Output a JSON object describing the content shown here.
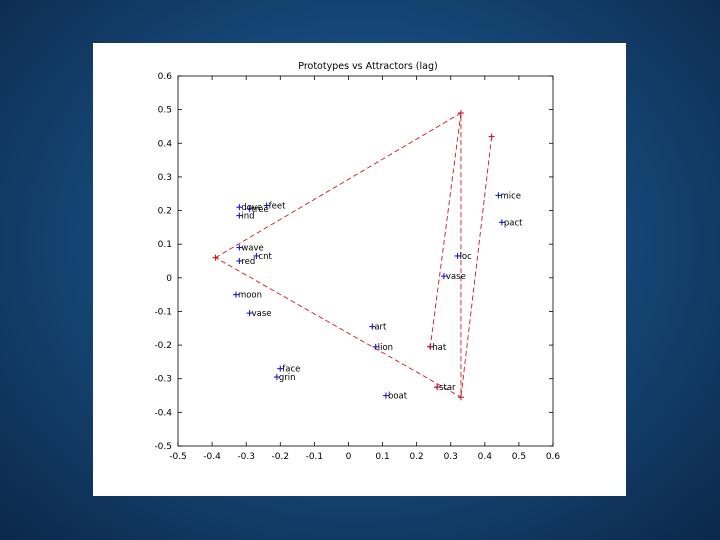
{
  "chart_data": {
    "type": "scatter",
    "title": "Prototypes vs Attractors (lag)",
    "xlabel": "",
    "ylabel": "",
    "xlim": [
      -0.5,
      0.6
    ],
    "ylim": [
      -0.5,
      0.6
    ],
    "grid": false,
    "x_ticks": [
      -0.5,
      -0.4,
      -0.3,
      -0.2,
      -0.1,
      0,
      0.1,
      0.2,
      0.3,
      0.4,
      0.5,
      0.6
    ],
    "x_tick_labels": [
      "-0.5",
      "-0.4",
      "-0.3",
      "-0.2",
      "-0.1",
      "0",
      "0.1",
      "0.2",
      "0.3",
      "0.4",
      "0.5",
      "0.6"
    ],
    "y_ticks": [
      0.6,
      0.5,
      0.4,
      0.3,
      0.2,
      0.1,
      0,
      -0.1,
      -0.2,
      -0.3,
      -0.4,
      -0.5
    ],
    "y_tick_labels": [
      "0.6",
      "0.5",
      "0.4",
      "0.3",
      "0.2",
      "0.1",
      "0",
      "-0.1",
      "-0.2",
      "-0.3",
      "-0.4",
      "-0.5"
    ],
    "series": [
      {
        "color": "#1a1acc",
        "marker": "plus",
        "points": [
          {
            "x": -0.32,
            "y": 0.21,
            "label": "dove"
          },
          {
            "x": -0.29,
            "y": 0.205,
            "label": "tree"
          },
          {
            "x": -0.24,
            "y": 0.215,
            "label": "feet"
          },
          {
            "x": -0.32,
            "y": 0.185,
            "label": "ind"
          },
          {
            "x": -0.32,
            "y": 0.09,
            "label": "wave"
          },
          {
            "x": -0.27,
            "y": 0.065,
            "label": "cnt"
          },
          {
            "x": -0.32,
            "y": 0.05,
            "label": "red"
          },
          {
            "x": -0.33,
            "y": -0.05,
            "label": "moon"
          },
          {
            "x": -0.29,
            "y": -0.105,
            "label": "vase"
          },
          {
            "x": 0.07,
            "y": -0.145,
            "label": "art"
          },
          {
            "x": 0.08,
            "y": -0.205,
            "label": "lion"
          },
          {
            "x": 0.24,
            "y": -0.205,
            "label": "hat"
          },
          {
            "x": 0.26,
            "y": -0.325,
            "label": "star"
          },
          {
            "x": 0.11,
            "y": -0.35,
            "label": "boat"
          },
          {
            "x": -0.2,
            "y": -0.27,
            "label": "face"
          },
          {
            "x": -0.21,
            "y": -0.295,
            "label": "grin"
          },
          {
            "x": 0.32,
            "y": 0.065,
            "label": "loc"
          },
          {
            "x": 0.28,
            "y": 0.005,
            "label": "vase"
          },
          {
            "x": 0.45,
            "y": 0.165,
            "label": "pact"
          },
          {
            "x": 0.44,
            "y": 0.245,
            "label": "mice"
          }
        ]
      },
      {
        "color": "#cc1a1a",
        "marker": "plus",
        "points": [
          {
            "x": -0.39,
            "y": 0.06
          },
          {
            "x": 0.33,
            "y": 0.49
          },
          {
            "x": 0.42,
            "y": 0.42
          },
          {
            "x": 0.33,
            "y": -0.355
          },
          {
            "x": 0.24,
            "y": -0.205
          },
          {
            "x": 0.26,
            "y": -0.325
          }
        ]
      }
    ],
    "dashed_lines": [
      {
        "color": "#cc1a1a",
        "points": [
          [
            -0.39,
            0.06
          ],
          [
            0.33,
            0.49
          ],
          [
            0.33,
            -0.355
          ],
          [
            -0.39,
            0.06
          ]
        ]
      },
      {
        "color": "#cc1a1a",
        "points": [
          [
            0.42,
            0.42
          ],
          [
            0.33,
            -0.355
          ]
        ]
      },
      {
        "color": "#cc1a1a",
        "points": [
          [
            0.33,
            0.49
          ],
          [
            0.24,
            -0.205
          ]
        ]
      }
    ]
  }
}
